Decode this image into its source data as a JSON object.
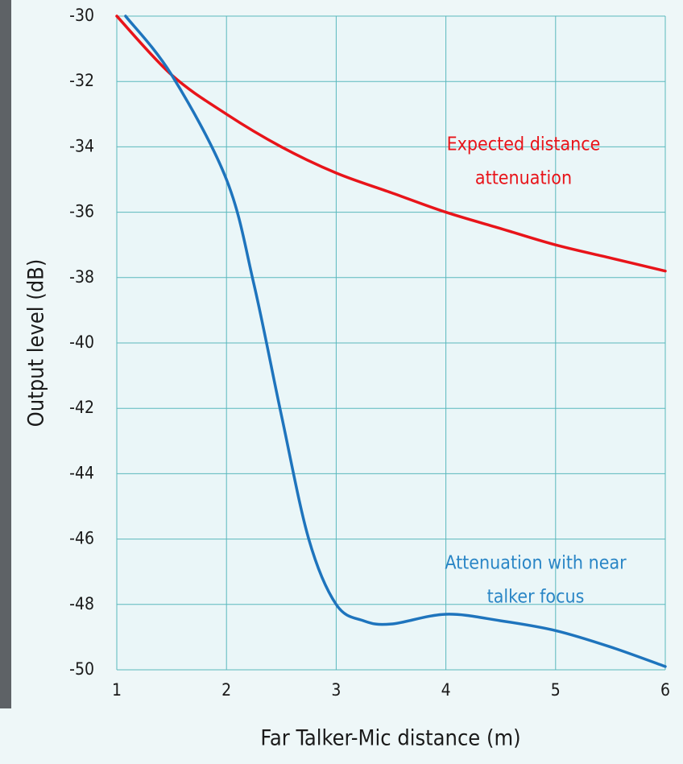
{
  "chart_data": {
    "type": "line",
    "x_label": "Far Talker-Mic distance (m)",
    "y_label": "Output level (dB)",
    "xlim": [
      1,
      6
    ],
    "ylim": [
      -50,
      -30
    ],
    "xticks": [
      1,
      2,
      3,
      4,
      5,
      6
    ],
    "yticks": [
      -30,
      -32,
      -34,
      -36,
      -38,
      -40,
      -42,
      -44,
      -46,
      -48,
      -50
    ],
    "grid": true,
    "grid_color": "#5ab8bd",
    "series": [
      {
        "color": "#e8141a",
        "x": [
          1,
          1.5,
          2,
          2.5,
          3,
          3.5,
          4,
          4.5,
          5,
          5.5,
          6
        ],
        "values": [
          -30,
          -31.8,
          -33,
          -34,
          -34.8,
          -35.4,
          -36,
          -36.5,
          -37,
          -37.4,
          -37.8
        ]
      },
      {
        "color": "#1e74bd",
        "x": [
          1.08,
          1.5,
          2,
          2.25,
          2.5,
          2.75,
          3,
          3.25,
          3.5,
          4,
          4.5,
          5,
          5.5,
          6
        ],
        "values": [
          -30,
          -31.8,
          -35,
          -38.2,
          -42.2,
          -46,
          -48,
          -48.5,
          -48.6,
          -48.3,
          -48.5,
          -48.8,
          -49.3,
          -49.9
        ]
      }
    ],
    "annotations": [
      {
        "lines": [
          "Expected distance",
          "attenuation"
        ],
        "color": "#e8141a"
      },
      {
        "lines": [
          "Attenuation with near",
          "talker focus"
        ],
        "color": "#2a86c6"
      }
    ]
  }
}
